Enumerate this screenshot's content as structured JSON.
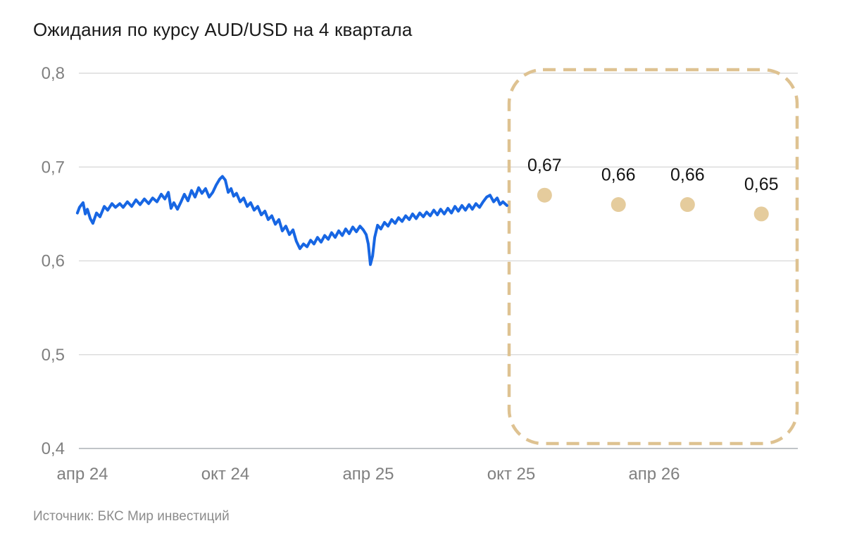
{
  "chart": {
    "title": "Ожидания по курсу AUD/USD на 4 квартала",
    "source": "Источник: БКС Мир инвестиций"
  },
  "colors": {
    "history_line": "#1766e3",
    "forecast_dot": "#e5cc9d",
    "forecast_outline": "#dec291",
    "grid": "#dcdcdc",
    "axis_line": "#c0c4c8",
    "tick_text": "#808080",
    "value_label_text": "#141414",
    "background": "#ffffff"
  },
  "chart_data": {
    "type": "line",
    "title": "Ожидания по курсу AUD/USD на 4 квартала",
    "xlabel": "",
    "ylabel": "",
    "ylim": [
      0.4,
      0.8
    ],
    "grid": "horizontal",
    "legend": "none",
    "x_unit": "months since Apr 2024",
    "y_ticks": [
      {
        "v": 0.8,
        "label": "0,8"
      },
      {
        "v": 0.7,
        "label": "0,7"
      },
      {
        "v": 0.6,
        "label": "0,6"
      },
      {
        "v": 0.5,
        "label": "0,5"
      },
      {
        "v": 0.4,
        "label": "0,4"
      }
    ],
    "x_ticks": [
      {
        "m": 0,
        "label": "апр 24"
      },
      {
        "m": 6,
        "label": "окт 24"
      },
      {
        "m": 12,
        "label": "апр 25"
      },
      {
        "m": 18,
        "label": "окт 25"
      },
      {
        "m": 24,
        "label": "апр 26"
      }
    ],
    "series": [
      {
        "name": "AUD/USD history",
        "type": "line",
        "points": [
          [
            -0.21,
            0.651
          ],
          [
            -0.12,
            0.657
          ],
          [
            0.03,
            0.662
          ],
          [
            0.12,
            0.65
          ],
          [
            0.21,
            0.655
          ],
          [
            0.33,
            0.645
          ],
          [
            0.44,
            0.64
          ],
          [
            0.59,
            0.651
          ],
          [
            0.74,
            0.647
          ],
          [
            0.92,
            0.658
          ],
          [
            1.06,
            0.654
          ],
          [
            1.24,
            0.661
          ],
          [
            1.39,
            0.657
          ],
          [
            1.57,
            0.661
          ],
          [
            1.71,
            0.657
          ],
          [
            1.89,
            0.663
          ],
          [
            2.07,
            0.658
          ],
          [
            2.25,
            0.665
          ],
          [
            2.42,
            0.66
          ],
          [
            2.6,
            0.666
          ],
          [
            2.78,
            0.661
          ],
          [
            2.95,
            0.667
          ],
          [
            3.13,
            0.663
          ],
          [
            3.31,
            0.671
          ],
          [
            3.46,
            0.666
          ],
          [
            3.61,
            0.673
          ],
          [
            3.72,
            0.656
          ],
          [
            3.84,
            0.662
          ],
          [
            3.99,
            0.655
          ],
          [
            4.14,
            0.663
          ],
          [
            4.28,
            0.671
          ],
          [
            4.43,
            0.664
          ],
          [
            4.58,
            0.675
          ],
          [
            4.73,
            0.668
          ],
          [
            4.88,
            0.678
          ],
          [
            5.02,
            0.672
          ],
          [
            5.17,
            0.677
          ],
          [
            5.32,
            0.668
          ],
          [
            5.47,
            0.673
          ],
          [
            5.62,
            0.681
          ],
          [
            5.76,
            0.687
          ],
          [
            5.88,
            0.69
          ],
          [
            6.0,
            0.686
          ],
          [
            6.12,
            0.673
          ],
          [
            6.24,
            0.677
          ],
          [
            6.35,
            0.669
          ],
          [
            6.47,
            0.672
          ],
          [
            6.62,
            0.663
          ],
          [
            6.77,
            0.667
          ],
          [
            6.92,
            0.658
          ],
          [
            7.06,
            0.662
          ],
          [
            7.21,
            0.654
          ],
          [
            7.36,
            0.658
          ],
          [
            7.51,
            0.649
          ],
          [
            7.66,
            0.653
          ],
          [
            7.8,
            0.644
          ],
          [
            7.95,
            0.648
          ],
          [
            8.1,
            0.639
          ],
          [
            8.25,
            0.644
          ],
          [
            8.39,
            0.632
          ],
          [
            8.54,
            0.637
          ],
          [
            8.69,
            0.628
          ],
          [
            8.84,
            0.633
          ],
          [
            8.98,
            0.621
          ],
          [
            9.13,
            0.613
          ],
          [
            9.28,
            0.618
          ],
          [
            9.43,
            0.615
          ],
          [
            9.58,
            0.622
          ],
          [
            9.72,
            0.618
          ],
          [
            9.87,
            0.625
          ],
          [
            10.02,
            0.62
          ],
          [
            10.17,
            0.627
          ],
          [
            10.32,
            0.623
          ],
          [
            10.46,
            0.63
          ],
          [
            10.61,
            0.625
          ],
          [
            10.76,
            0.632
          ],
          [
            10.91,
            0.627
          ],
          [
            11.05,
            0.634
          ],
          [
            11.2,
            0.629
          ],
          [
            11.35,
            0.636
          ],
          [
            11.5,
            0.631
          ],
          [
            11.65,
            0.637
          ],
          [
            11.79,
            0.633
          ],
          [
            11.91,
            0.628
          ],
          [
            12.0,
            0.618
          ],
          [
            12.09,
            0.596
          ],
          [
            12.18,
            0.605
          ],
          [
            12.27,
            0.625
          ],
          [
            12.39,
            0.638
          ],
          [
            12.53,
            0.634
          ],
          [
            12.68,
            0.641
          ],
          [
            12.83,
            0.637
          ],
          [
            12.98,
            0.644
          ],
          [
            13.13,
            0.64
          ],
          [
            13.27,
            0.646
          ],
          [
            13.42,
            0.642
          ],
          [
            13.57,
            0.648
          ],
          [
            13.72,
            0.644
          ],
          [
            13.86,
            0.65
          ],
          [
            14.01,
            0.645
          ],
          [
            14.16,
            0.651
          ],
          [
            14.31,
            0.647
          ],
          [
            14.45,
            0.652
          ],
          [
            14.6,
            0.648
          ],
          [
            14.75,
            0.654
          ],
          [
            14.9,
            0.649
          ],
          [
            15.04,
            0.655
          ],
          [
            15.19,
            0.65
          ],
          [
            15.34,
            0.656
          ],
          [
            15.49,
            0.651
          ],
          [
            15.64,
            0.658
          ],
          [
            15.78,
            0.653
          ],
          [
            15.93,
            0.659
          ],
          [
            16.08,
            0.654
          ],
          [
            16.23,
            0.66
          ],
          [
            16.37,
            0.655
          ],
          [
            16.52,
            0.661
          ],
          [
            16.67,
            0.657
          ],
          [
            16.82,
            0.663
          ],
          [
            16.97,
            0.668
          ],
          [
            17.11,
            0.67
          ],
          [
            17.26,
            0.663
          ],
          [
            17.41,
            0.667
          ],
          [
            17.53,
            0.66
          ],
          [
            17.65,
            0.663
          ],
          [
            17.82,
            0.659
          ]
        ]
      },
      {
        "name": "Forecast (4 quarters)",
        "type": "scatter",
        "points": [
          [
            19.4,
            0.67
          ],
          [
            22.5,
            0.66
          ],
          [
            25.4,
            0.66
          ],
          [
            28.5,
            0.65
          ]
        ],
        "labels": [
          "0,67",
          "0,66",
          "0,66",
          "0,65"
        ]
      }
    ],
    "forecast_region": {
      "m_start": 17.9,
      "m_end": 30.0,
      "style": "dashed-rounded-box"
    }
  }
}
